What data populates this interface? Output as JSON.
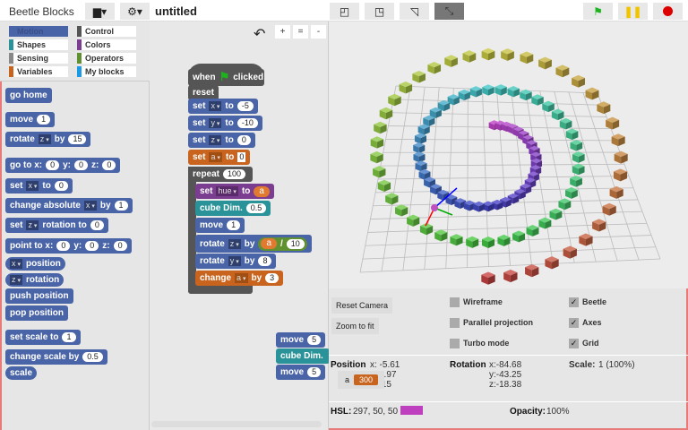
{
  "app": {
    "title": "Beetle Blocks",
    "project": "untitled"
  },
  "toolbar": {
    "file_icon": "file-icon",
    "settings_icon": "gear-icon",
    "layout_buttons": [
      "normal-layout",
      "wide-stage",
      "small-stage",
      "collapse"
    ],
    "run_flag": "green-flag",
    "pause": "pause",
    "stop": "stop"
  },
  "categories": [
    {
      "label": "Motion",
      "color": "#4a64a8"
    },
    {
      "label": "Control",
      "color": "#555555"
    },
    {
      "label": "Shapes",
      "color": "#2a9399"
    },
    {
      "label": "Colors",
      "color": "#7a3d8f"
    },
    {
      "label": "Sensing",
      "color": "#888888"
    },
    {
      "label": "Operators",
      "color": "#5f9131"
    },
    {
      "label": "Variables",
      "color": "#c8641e"
    },
    {
      "label": "My blocks",
      "color": "#1a9ae8"
    }
  ],
  "palette": {
    "go_home": "go home",
    "move": "move",
    "move_v": "1",
    "rotate": "rotate",
    "rotate_axis": "z",
    "by": "by",
    "rotate_v": "15",
    "goto": "go to x:",
    "y": "y:",
    "z": "z:",
    "zero": "0",
    "set": "set",
    "x": "x",
    "to": "to",
    "change_abs": "change absolute",
    "one": "1",
    "rotation_to": "rotation to",
    "point_to": "point to x:",
    "position": "position",
    "rotation": "rotation",
    "push": "push position",
    "pop": "pop position",
    "set_scale": "set scale to",
    "change_scale": "change scale by",
    "half": "0.5",
    "scale": "scale"
  },
  "script": {
    "undo_icon": "undo-icon",
    "zoom": [
      "+",
      "=",
      "-"
    ],
    "when": "when",
    "clicked": "clicked",
    "reset": "reset",
    "set": "set",
    "to": "to",
    "x": "x",
    "y": "y",
    "z": "z",
    "a": "a",
    "hue": "hue",
    "xv": "-5",
    "yv": "-10",
    "zv": "0",
    "av": "0",
    "repeat": "repeat",
    "repeat_v": "100",
    "cube": "cube Dim.",
    "cube_v": "0.5",
    "move": "move",
    "move_v": "1",
    "rotate": "rotate",
    "by": "by",
    "div": "/",
    "div_v": "10",
    "roty_v": "8",
    "change": "change",
    "change_v": "3",
    "loose": {
      "move1": "5",
      "cube": "cube Dim.",
      "move2": "5"
    }
  },
  "controls": {
    "reset_camera": "Reset Camera",
    "zoom_fit": "Zoom to fit",
    "toggles": [
      {
        "label": "Wireframe",
        "checked": false
      },
      {
        "label": "Parallel projection",
        "checked": false
      },
      {
        "label": "Turbo mode",
        "checked": false
      },
      {
        "label": "Beetle",
        "checked": true
      },
      {
        "label": "Axes",
        "checked": true
      },
      {
        "label": "Grid",
        "checked": true
      }
    ],
    "position_label": "Position",
    "pos_x": "x: -5.61",
    "pos_y": "7.97",
    "pos_z": ".15",
    "rotation_label": "Rotation",
    "rot_x": "x:-84.68",
    "rot_y": "y:-43.25",
    "rot_z": "z:-18.38",
    "scale_label": "Scale:",
    "scale_value": "1 (100%)",
    "hsl_label": "HSL:",
    "hsl_value": "297, 50, 50",
    "hsl_color": "#bf40bf",
    "opacity_label": "Opacity:",
    "opacity_value": "100%",
    "watcher": {
      "name": "a",
      "value": "300"
    }
  }
}
